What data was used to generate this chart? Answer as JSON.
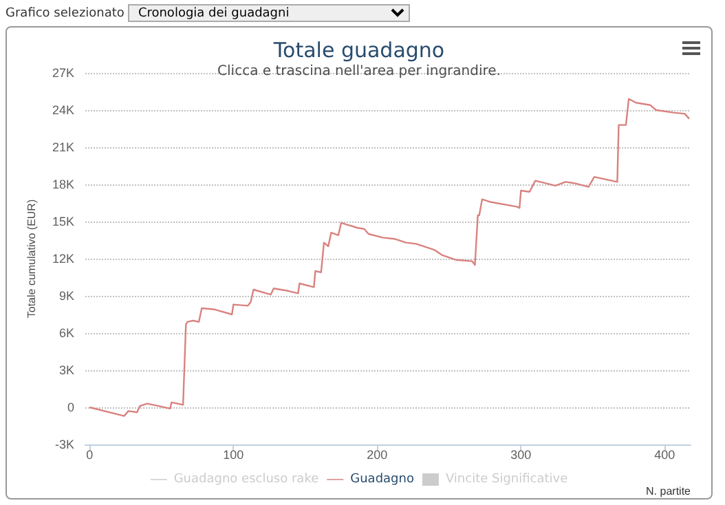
{
  "chart_data": {
    "type": "line",
    "title": "Totale guadagno",
    "subtitle": "Clicca e trascina nell'area per ingrandire.",
    "xlabel": "N. partite",
    "ylabel": "Totale cumulativo (EUR)",
    "annotations": [
      "Grafico selezionato",
      "Cronologia dei guadagni"
    ],
    "xlim": [
      -3,
      418
    ],
    "xticks": [
      0,
      100,
      200,
      300,
      400
    ],
    "ylim": [
      -3000,
      27000
    ],
    "yticks": [
      {
        "value": -3000,
        "label": "-3K"
      },
      {
        "value": 0,
        "label": "0"
      },
      {
        "value": 3000,
        "label": "3K"
      },
      {
        "value": 6000,
        "label": "6K"
      },
      {
        "value": 9000,
        "label": "9K"
      },
      {
        "value": 12000,
        "label": "12K"
      },
      {
        "value": 15000,
        "label": "15K"
      },
      {
        "value": 18000,
        "label": "18K"
      },
      {
        "value": 21000,
        "label": "21K"
      },
      {
        "value": 24000,
        "label": "24K"
      },
      {
        "value": 27000,
        "label": "27K"
      }
    ],
    "grid": "y",
    "legend": "bottom",
    "marker": "none",
    "series": [
      {
        "name": "Guadagno escluso rake",
        "color": "#cccccc"
      },
      {
        "name": "Guadagno",
        "color": "#d9827f",
        "x": [
          0,
          24,
          27,
          33,
          35,
          40,
          48,
          56,
          57,
          65,
          67,
          68,
          72,
          76,
          78,
          87,
          99,
          100,
          110,
          112,
          114,
          126,
          128,
          138,
          145,
          146,
          156,
          157,
          161,
          163,
          166,
          168,
          173,
          175,
          186,
          191,
          194,
          204,
          212,
          220,
          227,
          235,
          240,
          245,
          255,
          266,
          268,
          270,
          271,
          273,
          278,
          297,
          299,
          300,
          306,
          310,
          324,
          331,
          337,
          347,
          351,
          367,
          368,
          373,
          375,
          380,
          390,
          394,
          406,
          414,
          417
        ],
        "values": [
          0,
          -700,
          -300,
          -400,
          100,
          300,
          100,
          -100,
          400,
          200,
          6700,
          6900,
          7000,
          6900,
          8000,
          7900,
          7500,
          8300,
          8200,
          8500,
          9500,
          9100,
          9600,
          9400,
          9200,
          10000,
          9700,
          11000,
          10900,
          13300,
          13000,
          14100,
          13900,
          14900,
          14500,
          14400,
          14000,
          13700,
          13600,
          13300,
          13200,
          12900,
          12700,
          12300,
          11900,
          11800,
          11500,
          15500,
          15500,
          16800,
          16600,
          16200,
          16100,
          17500,
          17400,
          18300,
          17900,
          18200,
          18100,
          17800,
          18600,
          18200,
          22800,
          22800,
          24900,
          24600,
          24400,
          24000,
          23800,
          23700,
          23300
        ]
      },
      {
        "name": "Vincite Significative",
        "type": "bar",
        "color": "#cccccc"
      }
    ]
  }
}
